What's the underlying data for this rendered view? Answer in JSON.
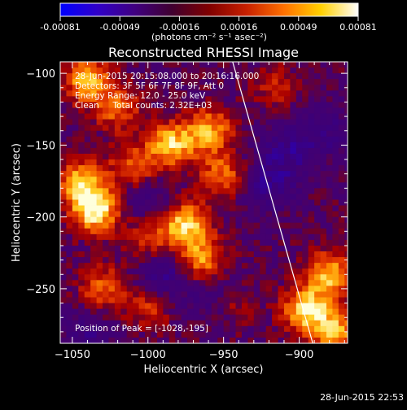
{
  "colorbar": {
    "tick_labels": [
      "-0.00081",
      "-0.00049",
      "-0.00016",
      "0.00016",
      "0.00049",
      "0.00081"
    ],
    "range": [
      -0.00081,
      0.00081
    ],
    "unit_label": "(photons cm⁻² s⁻¹ asec⁻²)",
    "colors": [
      "#0000ff",
      "#3000c8",
      "#400080",
      "#400030",
      "#800000",
      "#c82000",
      "#ff7000",
      "#ffd000",
      "#ffffff"
    ]
  },
  "chart_data": {
    "type": "heatmap",
    "title": "Reconstructed RHESSI Image",
    "xlabel": "Heliocentric X (arcsec)",
    "ylabel": "Heliocentric Y (arcsec)",
    "xlim": [
      -1058,
      -868
    ],
    "ylim": [
      -288,
      -92
    ],
    "x_ticks": [
      -1050,
      -1000,
      -950,
      -900
    ],
    "y_ticks": [
      -100,
      -150,
      -200,
      -250
    ],
    "annotations": [
      "28-Jun-2015 20:15:08.000 to 20:16:16.000",
      "Detectors: 3F 5F 6F 7F 8F 9F, Att 0",
      "Energy Range: 12.0 - 25.0 keV",
      "Clean     Total counts: 2.32E+03"
    ],
    "peak_label": "Position of Peak = [-1028,-195]",
    "peak": [
      -1028,
      -195
    ],
    "limb_line": [
      [
        -944,
        -92
      ],
      [
        -891,
        -288
      ]
    ],
    "sources": [
      {
        "x": -1035,
        "y": -195,
        "intensity": 1.0
      },
      {
        "x": -1045,
        "y": -175,
        "intensity": 0.7
      },
      {
        "x": -1040,
        "y": -105,
        "intensity": 0.75
      },
      {
        "x": -1020,
        "y": -125,
        "intensity": 0.5
      },
      {
        "x": -985,
        "y": -150,
        "intensity": 0.8
      },
      {
        "x": -960,
        "y": -140,
        "intensity": 0.7
      },
      {
        "x": -950,
        "y": -170,
        "intensity": 0.55
      },
      {
        "x": -1010,
        "y": -165,
        "intensity": 0.5
      },
      {
        "x": -975,
        "y": -205,
        "intensity": 0.85
      },
      {
        "x": -965,
        "y": -230,
        "intensity": 0.7
      },
      {
        "x": -1000,
        "y": -215,
        "intensity": 0.45
      },
      {
        "x": -1030,
        "y": -250,
        "intensity": 0.55
      },
      {
        "x": -1000,
        "y": -262,
        "intensity": 0.4
      },
      {
        "x": -945,
        "y": -260,
        "intensity": 0.35
      },
      {
        "x": -880,
        "y": -240,
        "intensity": 0.75
      },
      {
        "x": -895,
        "y": -265,
        "intensity": 0.9
      },
      {
        "x": -875,
        "y": -280,
        "intensity": 0.7
      },
      {
        "x": -915,
        "y": -110,
        "intensity": 0.3
      }
    ],
    "negative_sources": [
      {
        "x": -990,
        "y": -240,
        "intensity": 0.8
      },
      {
        "x": -955,
        "y": -255,
        "intensity": 0.6
      },
      {
        "x": -920,
        "y": -175,
        "intensity": 0.7
      },
      {
        "x": -905,
        "y": -150,
        "intensity": 0.6
      },
      {
        "x": -1000,
        "y": -190,
        "intensity": 0.5
      },
      {
        "x": -1040,
        "y": -280,
        "intensity": 0.5
      },
      {
        "x": -880,
        "y": -140,
        "intensity": 0.4
      }
    ]
  },
  "footer": {
    "timestamp": "28-Jun-2015 22:53"
  }
}
